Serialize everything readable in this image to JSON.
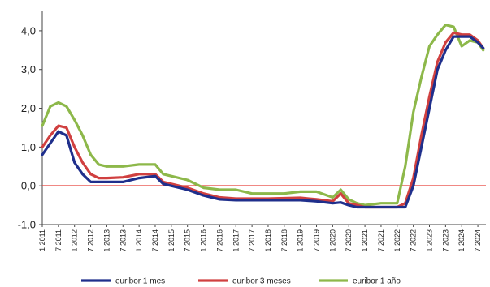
{
  "chart_data": {
    "type": "line",
    "ylim": [
      -1.0,
      4.5
    ],
    "yticks": [
      -1.0,
      0.0,
      1.0,
      2.0,
      3.0,
      4.0
    ],
    "ytick_labels": [
      "-1,0",
      "0,0",
      "1,0",
      "2,0",
      "3,0",
      "4,0"
    ],
    "x_tick_labels": [
      "1 2011",
      "7 2011",
      "1 2012",
      "7 2012",
      "1 2013",
      "7 2013",
      "1 2014",
      "7 2014",
      "1 2015",
      "7 2015",
      "1 2016",
      "7 2016",
      "1 2017",
      "7 2017",
      "1 2018",
      "7 2018",
      "1 2019",
      "7 2019",
      "1 2020",
      "7 2020",
      "1 2021",
      "7 2021",
      "1 2022",
      "7 2022",
      "1 2023",
      "7 2023",
      "1 2024",
      "7 2024"
    ],
    "reference_line": {
      "y": 0.0,
      "color": "#e8403a"
    },
    "legend_position": "bottom",
    "grid": false,
    "series": [
      {
        "name": "euribor 1 mes",
        "color": "#1f2f8c",
        "x": [
          "2011-01",
          "2011-04",
          "2011-07",
          "2011-10",
          "2012-01",
          "2012-04",
          "2012-07",
          "2012-10",
          "2013-01",
          "2013-07",
          "2014-01",
          "2014-07",
          "2014-10",
          "2015-01",
          "2015-07",
          "2016-01",
          "2016-07",
          "2017-01",
          "2017-07",
          "2018-01",
          "2018-07",
          "2019-01",
          "2019-07",
          "2020-01",
          "2020-04",
          "2020-07",
          "2020-10",
          "2021-01",
          "2021-07",
          "2022-01",
          "2022-04",
          "2022-07",
          "2022-10",
          "2023-01",
          "2023-04",
          "2023-07",
          "2023-10",
          "2024-01",
          "2024-04",
          "2024-07",
          "2024-09"
        ],
        "values": [
          0.8,
          1.1,
          1.4,
          1.3,
          0.6,
          0.3,
          0.1,
          0.1,
          0.1,
          0.1,
          0.2,
          0.25,
          0.05,
          0.0,
          -0.1,
          -0.25,
          -0.35,
          -0.37,
          -0.37,
          -0.37,
          -0.37,
          -0.37,
          -0.4,
          -0.45,
          -0.43,
          -0.5,
          -0.55,
          -0.55,
          -0.55,
          -0.55,
          -0.55,
          0.0,
          1.0,
          2.0,
          3.0,
          3.5,
          3.85,
          3.85,
          3.85,
          3.7,
          3.55
        ]
      },
      {
        "name": "euribor 3 meses",
        "color": "#d04040",
        "x": [
          "2011-01",
          "2011-04",
          "2011-07",
          "2011-10",
          "2012-01",
          "2012-04",
          "2012-07",
          "2012-10",
          "2013-01",
          "2013-07",
          "2014-01",
          "2014-07",
          "2014-10",
          "2015-01",
          "2015-07",
          "2016-01",
          "2016-07",
          "2017-01",
          "2017-07",
          "2018-01",
          "2018-07",
          "2019-01",
          "2019-07",
          "2020-01",
          "2020-04",
          "2020-07",
          "2020-10",
          "2021-01",
          "2021-07",
          "2022-01",
          "2022-04",
          "2022-07",
          "2022-10",
          "2023-01",
          "2023-04",
          "2023-07",
          "2023-10",
          "2024-01",
          "2024-04",
          "2024-07",
          "2024-09"
        ],
        "values": [
          1.0,
          1.3,
          1.55,
          1.5,
          1.0,
          0.6,
          0.3,
          0.2,
          0.2,
          0.22,
          0.3,
          0.3,
          0.1,
          0.05,
          -0.05,
          -0.2,
          -0.3,
          -0.33,
          -0.33,
          -0.33,
          -0.32,
          -0.31,
          -0.35,
          -0.4,
          -0.2,
          -0.45,
          -0.5,
          -0.55,
          -0.55,
          -0.55,
          -0.45,
          0.2,
          1.3,
          2.3,
          3.2,
          3.7,
          3.95,
          3.9,
          3.9,
          3.75,
          3.55
        ]
      },
      {
        "name": "euribor 1 año",
        "color": "#8db84a",
        "x": [
          "2011-01",
          "2011-04",
          "2011-07",
          "2011-10",
          "2012-01",
          "2012-04",
          "2012-07",
          "2012-10",
          "2013-01",
          "2013-07",
          "2014-01",
          "2014-07",
          "2014-10",
          "2015-01",
          "2015-07",
          "2016-01",
          "2016-07",
          "2017-01",
          "2017-07",
          "2018-01",
          "2018-07",
          "2019-01",
          "2019-07",
          "2020-01",
          "2020-04",
          "2020-07",
          "2020-10",
          "2021-01",
          "2021-07",
          "2022-01",
          "2022-04",
          "2022-07",
          "2022-10",
          "2023-01",
          "2023-04",
          "2023-07",
          "2023-10",
          "2024-01",
          "2024-04",
          "2024-07",
          "2024-09"
        ],
        "values": [
          1.55,
          2.05,
          2.15,
          2.05,
          1.7,
          1.3,
          0.8,
          0.55,
          0.5,
          0.5,
          0.55,
          0.55,
          0.3,
          0.25,
          0.15,
          -0.05,
          -0.1,
          -0.1,
          -0.2,
          -0.2,
          -0.2,
          -0.15,
          -0.15,
          -0.3,
          -0.1,
          -0.35,
          -0.45,
          -0.5,
          -0.45,
          -0.45,
          0.5,
          1.9,
          2.8,
          3.6,
          3.9,
          4.15,
          4.1,
          3.6,
          3.75,
          3.7,
          3.5
        ]
      }
    ]
  }
}
